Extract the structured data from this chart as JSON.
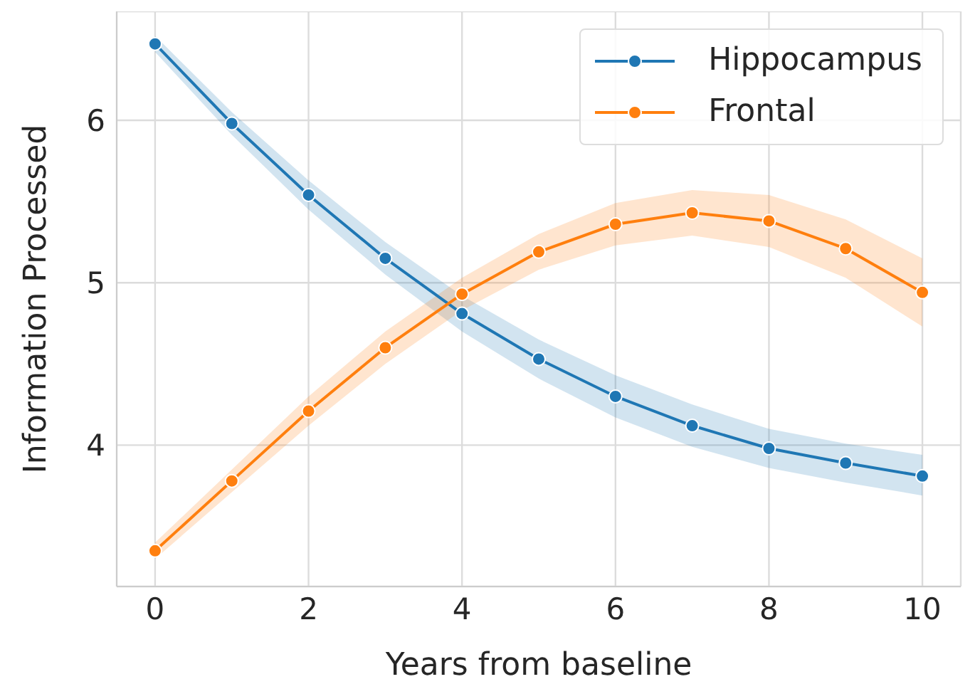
{
  "chart_data": {
    "type": "line",
    "xlabel": "Years from baseline",
    "ylabel": "Information Processed",
    "x": [
      0,
      1,
      2,
      3,
      4,
      5,
      6,
      7,
      8,
      9,
      10
    ],
    "series": [
      {
        "name": "Hippocampus",
        "color": "#1f77b4",
        "values": [
          6.47,
          5.98,
          5.54,
          5.15,
          4.81,
          4.53,
          4.3,
          4.12,
          3.98,
          3.89,
          3.81
        ],
        "lower": [
          6.42,
          5.91,
          5.45,
          5.05,
          4.7,
          4.41,
          4.17,
          3.99,
          3.86,
          3.77,
          3.69
        ],
        "upper": [
          6.52,
          6.05,
          5.63,
          5.25,
          4.92,
          4.65,
          4.43,
          4.25,
          4.1,
          4.01,
          3.94
        ]
      },
      {
        "name": "Frontal",
        "color": "#ff7f0e",
        "values": [
          3.35,
          3.78,
          4.21,
          4.6,
          4.93,
          5.19,
          5.36,
          5.43,
          5.38,
          5.21,
          4.94
        ],
        "lower": [
          3.3,
          3.71,
          4.12,
          4.5,
          4.83,
          5.08,
          5.23,
          5.29,
          5.22,
          5.03,
          4.73
        ],
        "upper": [
          3.4,
          3.85,
          4.3,
          4.7,
          5.03,
          5.3,
          5.49,
          5.57,
          5.54,
          5.39,
          5.15
        ]
      }
    ],
    "xlim": [
      -0.5,
      10.5
    ],
    "xticks": [
      0,
      2,
      4,
      6,
      8,
      10
    ],
    "ylim": [
      3.13,
      6.67
    ],
    "yticks": [
      4,
      5,
      6
    ],
    "grid": true,
    "legend": "top right",
    "marker": "circle",
    "line_style": "solid"
  }
}
